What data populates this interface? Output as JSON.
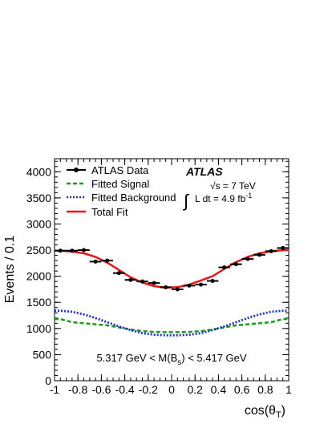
{
  "chart_data": {
    "type": "line",
    "xlabel": "cos(θ",
    "xlabel_sub": "T",
    "xlabel_close": ")",
    "ylabel": "Events / 0.1",
    "xlim": [
      -1,
      1
    ],
    "ylim": [
      0,
      4250
    ],
    "x_ticks": [
      -1,
      -0.8,
      -0.6,
      -0.4,
      -0.2,
      0,
      0.2,
      0.4,
      0.6,
      0.8,
      1
    ],
    "x_tick_labels": [
      "-1",
      "-0.8",
      "-0.6",
      "-0.4",
      "-0.2",
      "0",
      "0.2",
      "0.4",
      "0.6",
      "0.8",
      "1"
    ],
    "y_ticks": [
      0,
      500,
      1000,
      1500,
      2000,
      2500,
      3000,
      3500,
      4000
    ],
    "y_tick_labels": [
      "0",
      "500",
      "1000",
      "1500",
      "2000",
      "2500",
      "3000",
      "3500",
      "4000"
    ],
    "grid": false,
    "legend_position": "top-left",
    "legend": [
      {
        "label": "ATLAS Data",
        "style": "marker"
      },
      {
        "label": "Fitted Signal",
        "style": "dashed",
        "color": "#1a9a1a"
      },
      {
        "label": "Fitted Background",
        "style": "dotted",
        "color": "#1f2fd0"
      },
      {
        "label": "Total Fit",
        "style": "solid",
        "color": "#e8181a"
      }
    ],
    "annotations": {
      "experiment": "ATLAS",
      "energy": "√s = 7 TeV",
      "lumi_prefix": "L dt = 4.9 fb",
      "lumi_sup": "-1",
      "integral": "∫",
      "mass_window": {
        "prefix": "5.317 GeV < M(B",
        "sub": "s",
        "suffix": ") < 5.417 GeV"
      }
    },
    "data_points": {
      "x": [
        -0.95,
        -0.85,
        -0.75,
        -0.65,
        -0.55,
        -0.45,
        -0.35,
        -0.25,
        -0.15,
        -0.05,
        0.05,
        0.15,
        0.25,
        0.35,
        0.45,
        0.55,
        0.65,
        0.75,
        0.85,
        0.95
      ],
      "y": [
        2490,
        2490,
        2500,
        2280,
        2300,
        2060,
        1930,
        1900,
        1870,
        1790,
        1750,
        1820,
        1840,
        1910,
        2170,
        2230,
        2330,
        2410,
        2480,
        2540
      ],
      "x_err": 0.05
    },
    "series": [
      {
        "name": "Total Fit",
        "color": "#e8181a",
        "x": [
          -0.95,
          -0.85,
          -0.75,
          -0.65,
          -0.55,
          -0.45,
          -0.35,
          -0.25,
          -0.15,
          -0.05,
          0.05,
          0.15,
          0.25,
          0.35,
          0.45,
          0.55,
          0.65,
          0.75,
          0.85,
          0.95
        ],
        "y": [
          2490,
          2470,
          2440,
          2370,
          2260,
          2120,
          1980,
          1880,
          1810,
          1780,
          1790,
          1840,
          1920,
          2000,
          2140,
          2270,
          2370,
          2440,
          2480,
          2500
        ]
      },
      {
        "name": "Fitted Signal",
        "color": "#1a9a1a",
        "x": [
          -0.95,
          -0.85,
          -0.75,
          -0.65,
          -0.55,
          -0.45,
          -0.35,
          -0.25,
          -0.15,
          -0.05,
          0.05,
          0.15,
          0.25,
          0.35,
          0.45,
          0.55,
          0.65,
          0.75,
          0.85,
          0.95
        ],
        "y": [
          1180,
          1120,
          1100,
          1080,
          1060,
          1020,
          980,
          950,
          935,
          930,
          930,
          935,
          950,
          980,
          1020,
          1060,
          1080,
          1100,
          1120,
          1180
        ]
      },
      {
        "name": "Fitted Background",
        "color": "#1f2fd0",
        "x": [
          -0.95,
          -0.85,
          -0.75,
          -0.65,
          -0.55,
          -0.45,
          -0.35,
          -0.25,
          -0.15,
          -0.05,
          0.05,
          0.15,
          0.25,
          0.35,
          0.45,
          0.55,
          0.65,
          0.75,
          0.85,
          0.95
        ],
        "y": [
          1340,
          1320,
          1270,
          1200,
          1120,
          1040,
          970,
          910,
          880,
          870,
          870,
          880,
          910,
          970,
          1040,
          1120,
          1200,
          1270,
          1320,
          1340
        ]
      }
    ]
  }
}
